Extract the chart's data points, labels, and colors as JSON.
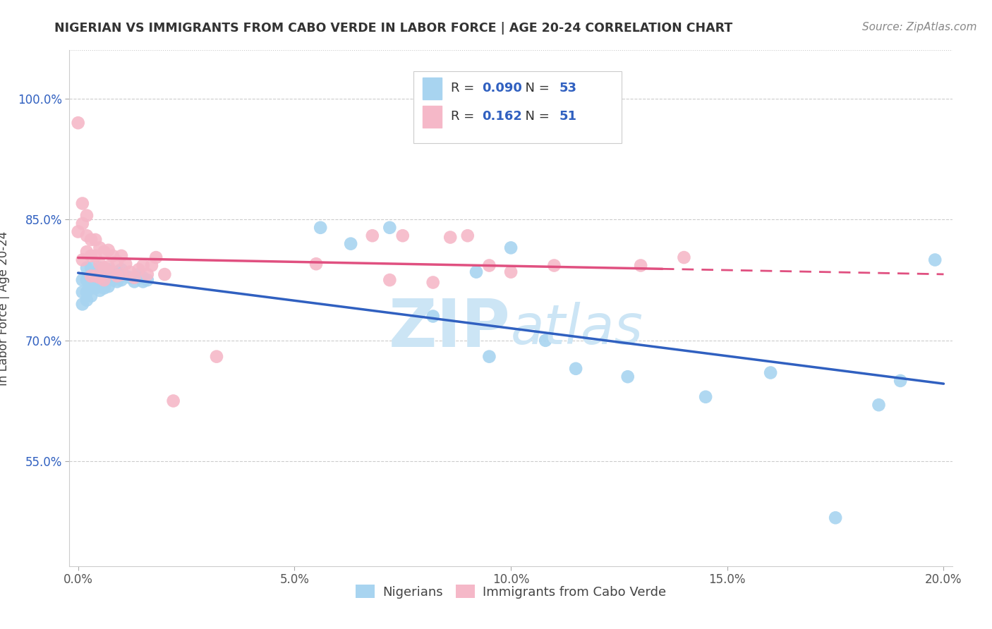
{
  "title": "NIGERIAN VS IMMIGRANTS FROM CABO VERDE IN LABOR FORCE | AGE 20-24 CORRELATION CHART",
  "source": "Source: ZipAtlas.com",
  "ylabel": "In Labor Force | Age 20-24",
  "xlabel": "",
  "xlim": [
    -0.002,
    0.202
  ],
  "ylim": [
    0.42,
    1.06
  ],
  "yticks": [
    0.55,
    0.7,
    0.85,
    1.0
  ],
  "ytick_labels": [
    "55.0%",
    "70.0%",
    "85.0%",
    "100.0%"
  ],
  "xticks": [
    0.0,
    0.05,
    0.1,
    0.15,
    0.2
  ],
  "xtick_labels": [
    "0.0%",
    "5.0%",
    "10.0%",
    "15.0%",
    "20.0%"
  ],
  "blue_R": 0.09,
  "blue_N": 53,
  "pink_R": 0.162,
  "pink_N": 51,
  "blue_color": "#a8d4f0",
  "pink_color": "#f5b8c8",
  "blue_line_color": "#3060c0",
  "pink_line_color": "#e05080",
  "title_color": "#333333",
  "axis_label_color": "#3060c0",
  "source_color": "#888888",
  "watermark_color": "#cce5f5",
  "blue_x": [
    0.001,
    0.001,
    0.001,
    0.002,
    0.002,
    0.002,
    0.002,
    0.003,
    0.003,
    0.003,
    0.003,
    0.004,
    0.004,
    0.004,
    0.005,
    0.005,
    0.005,
    0.005,
    0.006,
    0.006,
    0.006,
    0.007,
    0.007,
    0.007,
    0.008,
    0.008,
    0.009,
    0.009,
    0.01,
    0.01,
    0.011,
    0.012,
    0.013,
    0.014,
    0.015,
    0.015,
    0.016,
    0.056,
    0.063,
    0.072,
    0.082,
    0.092,
    0.095,
    0.1,
    0.108,
    0.115,
    0.127,
    0.145,
    0.16,
    0.175,
    0.185,
    0.19,
    0.198
  ],
  "blue_y": [
    0.775,
    0.76,
    0.745,
    0.79,
    0.775,
    0.76,
    0.75,
    0.79,
    0.778,
    0.768,
    0.755,
    0.785,
    0.775,
    0.765,
    0.79,
    0.78,
    0.773,
    0.762,
    0.785,
    0.775,
    0.765,
    0.788,
    0.778,
    0.767,
    0.785,
    0.775,
    0.785,
    0.773,
    0.788,
    0.775,
    0.78,
    0.778,
    0.773,
    0.782,
    0.778,
    0.773,
    0.775,
    0.84,
    0.82,
    0.84,
    0.73,
    0.785,
    0.68,
    0.815,
    0.7,
    0.665,
    0.655,
    0.63,
    0.66,
    0.48,
    0.62,
    0.65,
    0.8
  ],
  "pink_x": [
    0.0,
    0.0,
    0.001,
    0.001,
    0.001,
    0.002,
    0.002,
    0.002,
    0.003,
    0.003,
    0.003,
    0.004,
    0.004,
    0.004,
    0.005,
    0.005,
    0.005,
    0.006,
    0.006,
    0.006,
    0.007,
    0.007,
    0.008,
    0.008,
    0.009,
    0.009,
    0.01,
    0.01,
    0.011,
    0.012,
    0.013,
    0.014,
    0.015,
    0.016,
    0.017,
    0.018,
    0.02,
    0.022,
    0.032,
    0.055,
    0.068,
    0.072,
    0.075,
    0.082,
    0.086,
    0.09,
    0.095,
    0.1,
    0.11,
    0.13,
    0.14
  ],
  "pink_y": [
    0.97,
    0.835,
    0.87,
    0.845,
    0.8,
    0.855,
    0.83,
    0.81,
    0.825,
    0.805,
    0.78,
    0.825,
    0.805,
    0.78,
    0.815,
    0.795,
    0.778,
    0.81,
    0.79,
    0.775,
    0.812,
    0.792,
    0.805,
    0.785,
    0.798,
    0.78,
    0.805,
    0.782,
    0.795,
    0.785,
    0.778,
    0.788,
    0.793,
    0.782,
    0.793,
    0.803,
    0.782,
    0.625,
    0.68,
    0.795,
    0.83,
    0.775,
    0.83,
    0.772,
    0.828,
    0.83,
    0.793,
    0.785,
    0.793,
    0.793,
    0.803
  ]
}
